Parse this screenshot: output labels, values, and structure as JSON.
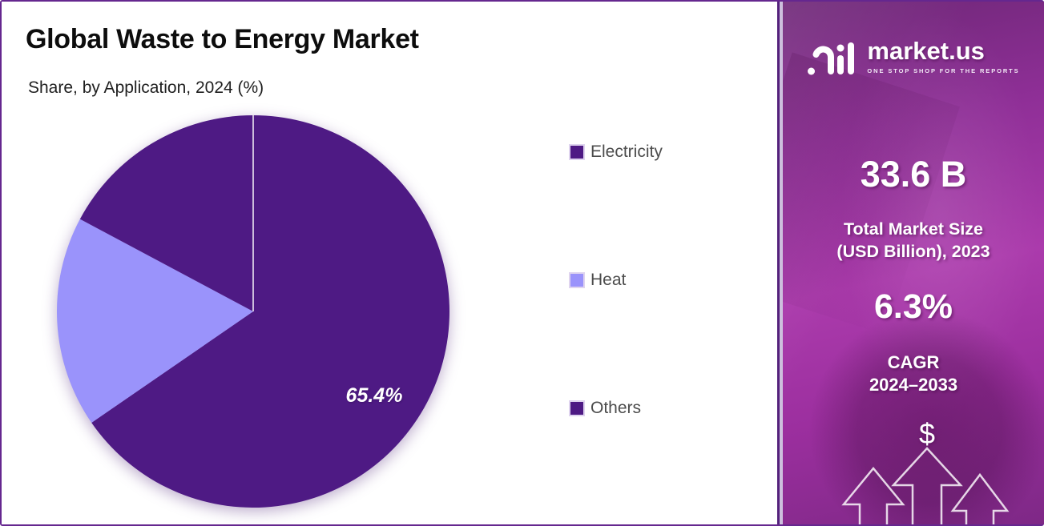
{
  "header": {
    "title": "Global Waste to Energy Market",
    "subtitle": "Share, by Application, 2024 (%)"
  },
  "chart_data": {
    "type": "pie",
    "title": "Global Waste to Energy Market",
    "subtitle": "Share, by Application, 2024 (%)",
    "categories": [
      "Electricity",
      "Heat",
      "Others"
    ],
    "values": [
      65.4,
      17.4,
      17.2
    ],
    "colors": [
      "#4E1A84",
      "#9A93FB",
      "#4E1A84"
    ],
    "label_electricity": "65.4%",
    "start_angle_deg": 0,
    "direction": "clockwise",
    "legend_position": "right",
    "divider_line_at_12_oclock": true,
    "note": "Only the Electricity slice is labeled (65.4%); Heat and Others estimated from arc angles."
  },
  "sidebar": {
    "brand": {
      "name": "market.us",
      "tagline": "ONE STOP SHOP FOR THE REPORTS"
    },
    "stats": [
      {
        "value": "33.6 B",
        "label_line1": "Total Market Size",
        "label_line2": "(USD Billion), 2023"
      },
      {
        "value": "6.3%",
        "label_line1": "CAGR",
        "label_line2": "2024–2033"
      }
    ],
    "dollar_symbol": "$"
  },
  "colors": {
    "slice_dark_purple": "#4E1A84",
    "slice_light_purple": "#9A93FB",
    "frame_border": "#65278F",
    "legend_text": "#4c4c4c",
    "sidebar_magenta": "#AB3BAC"
  }
}
